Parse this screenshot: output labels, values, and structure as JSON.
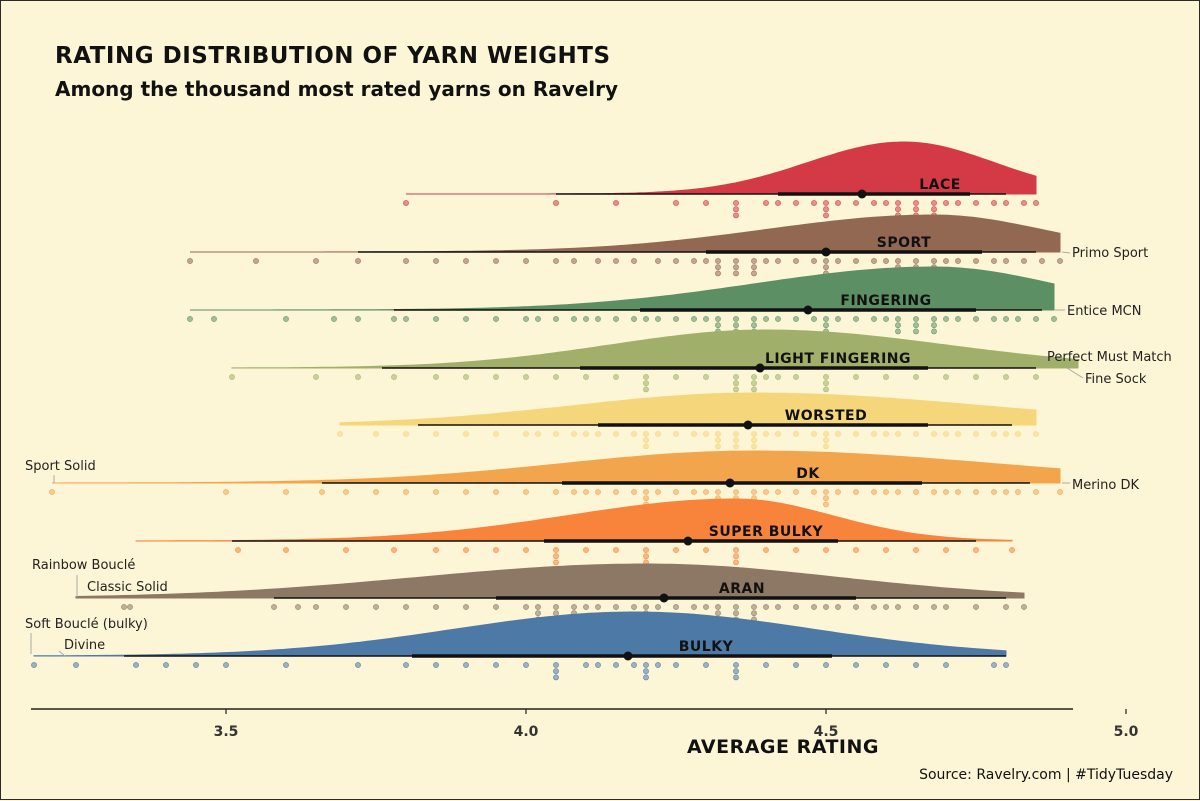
{
  "title": "RATING DISTRIBUTION OF YARN WEIGHTS",
  "subtitle": "Among the thousand most rated yarns on Ravelry",
  "caption": "Source: Ravelry.com | #TidyTuesday",
  "chart_data": {
    "type": "raincloud",
    "title": "RATING DISTRIBUTION OF YARN WEIGHTS",
    "subtitle": "Among the thousand most rated yarns on Ravelry",
    "xlabel": "AVERAGE RATING",
    "ylabel": "",
    "xlim": [
      3.17,
      4.92
    ],
    "xticks": [
      3.5,
      4.0,
      4.5,
      5.0
    ],
    "xtick_labels": [
      "3.5",
      "4.0",
      "4.5",
      "5.0"
    ],
    "grid": false,
    "legend": "none",
    "series": [
      {
        "name": "LACE",
        "color": "#d33a45",
        "min": 3.8,
        "max": 4.85,
        "q10": 4.05,
        "q90": 4.8,
        "q25": 4.42,
        "q75": 4.74,
        "median": 4.56,
        "peak": 4.63,
        "spread_low": 0.16,
        "spread_high": 0.15,
        "dots": [
          3.8,
          4.05,
          4.15,
          4.25,
          4.3,
          4.35,
          4.4,
          4.42,
          4.45,
          4.48,
          4.5,
          4.52,
          4.55,
          4.58,
          4.6,
          4.62,
          4.65,
          4.68,
          4.7,
          4.72,
          4.75,
          4.78,
          4.8,
          4.83,
          4.85
        ]
      },
      {
        "name": "SPORT",
        "color": "#936852",
        "min": 3.44,
        "max": 4.89,
        "q10": 3.72,
        "q90": 4.85,
        "q25": 4.3,
        "q75": 4.76,
        "median": 4.5,
        "peak": 4.68,
        "spread_low": 0.28,
        "spread_high": 0.18,
        "dots": [
          3.44,
          3.55,
          3.65,
          3.72,
          3.8,
          3.85,
          3.9,
          3.95,
          4.0,
          4.05,
          4.08,
          4.12,
          4.15,
          4.18,
          4.22,
          4.25,
          4.28,
          4.3,
          4.32,
          4.35,
          4.38,
          4.4,
          4.42,
          4.45,
          4.48,
          4.5,
          4.52,
          4.55,
          4.58,
          4.6,
          4.62,
          4.65,
          4.68,
          4.7,
          4.72,
          4.75,
          4.78,
          4.8,
          4.83,
          4.86,
          4.89
        ]
      },
      {
        "name": "FINGERING",
        "color": "#5c8f64",
        "min": 3.44,
        "max": 4.88,
        "q10": 3.78,
        "q90": 4.86,
        "q25": 4.19,
        "q75": 4.75,
        "median": 4.47,
        "peak": 4.68,
        "spread_low": 0.3,
        "spread_high": 0.2,
        "dots": [
          3.44,
          3.48,
          3.6,
          3.68,
          3.72,
          3.78,
          3.8,
          3.85,
          3.9,
          3.95,
          4.0,
          4.02,
          4.05,
          4.08,
          4.1,
          4.12,
          4.15,
          4.18,
          4.2,
          4.22,
          4.25,
          4.28,
          4.3,
          4.32,
          4.35,
          4.38,
          4.4,
          4.42,
          4.45,
          4.48,
          4.5,
          4.52,
          4.55,
          4.58,
          4.6,
          4.62,
          4.65,
          4.68,
          4.7,
          4.72,
          4.75,
          4.78,
          4.8,
          4.82,
          4.85,
          4.88
        ]
      },
      {
        "name": "LIGHT FINGERING",
        "color": "#a0b06a",
        "min": 3.51,
        "max": 4.92,
        "q10": 3.76,
        "q90": 4.85,
        "q25": 4.09,
        "q75": 4.67,
        "median": 4.39,
        "peak": 4.4,
        "spread_low": 0.26,
        "spread_high": 0.3,
        "dots": [
          3.51,
          3.65,
          3.72,
          3.78,
          3.85,
          3.9,
          3.95,
          4.0,
          4.05,
          4.1,
          4.15,
          4.2,
          4.25,
          4.3,
          4.35,
          4.38,
          4.4,
          4.42,
          4.45,
          4.5,
          4.55,
          4.6,
          4.65,
          4.7,
          4.75,
          4.8,
          4.85
        ]
      },
      {
        "name": "WORSTED",
        "color": "#f5d67a",
        "min": 3.69,
        "max": 4.85,
        "q10": 3.82,
        "q90": 4.81,
        "q25": 4.12,
        "q75": 4.67,
        "median": 4.37,
        "peak": 4.38,
        "spread_low": 0.3,
        "spread_high": 0.38,
        "dots": [
          3.69,
          3.75,
          3.8,
          3.85,
          3.9,
          3.95,
          4.0,
          4.02,
          4.05,
          4.08,
          4.1,
          4.12,
          4.15,
          4.18,
          4.2,
          4.22,
          4.25,
          4.28,
          4.3,
          4.32,
          4.35,
          4.38,
          4.4,
          4.42,
          4.45,
          4.48,
          4.5,
          4.52,
          4.55,
          4.58,
          4.6,
          4.62,
          4.65,
          4.68,
          4.7,
          4.72,
          4.75,
          4.78,
          4.8,
          4.82,
          4.85
        ]
      },
      {
        "name": "DK",
        "color": "#f3a54e",
        "min": 3.21,
        "max": 4.89,
        "q10": 3.66,
        "q90": 4.84,
        "q25": 4.06,
        "q75": 4.66,
        "median": 4.34,
        "peak": 4.38,
        "spread_low": 0.32,
        "spread_high": 0.4,
        "dots": [
          3.21,
          3.5,
          3.6,
          3.66,
          3.7,
          3.75,
          3.8,
          3.85,
          3.9,
          3.95,
          4.0,
          4.05,
          4.08,
          4.1,
          4.12,
          4.15,
          4.18,
          4.2,
          4.22,
          4.25,
          4.28,
          4.3,
          4.32,
          4.35,
          4.38,
          4.4,
          4.42,
          4.45,
          4.48,
          4.5,
          4.52,
          4.55,
          4.58,
          4.6,
          4.62,
          4.65,
          4.68,
          4.7,
          4.72,
          4.75,
          4.78,
          4.8,
          4.82,
          4.85,
          4.89
        ]
      },
      {
        "name": "SUPER BULKY",
        "color": "#f7843a",
        "min": 3.35,
        "max": 4.81,
        "q10": 3.51,
        "q90": 4.75,
        "q25": 4.03,
        "q75": 4.52,
        "median": 4.27,
        "peak": 4.35,
        "spread_low": 0.28,
        "spread_high": 0.16,
        "dots": [
          3.52,
          3.6,
          3.7,
          3.78,
          3.85,
          3.9,
          3.95,
          4.0,
          4.05,
          4.1,
          4.15,
          4.2,
          4.25,
          4.3,
          4.35,
          4.4,
          4.45,
          4.5,
          4.55,
          4.6,
          4.65,
          4.7,
          4.75,
          4.81
        ]
      },
      {
        "name": "ARAN",
        "color": "#8d7866",
        "min": 3.25,
        "max": 4.83,
        "q10": 3.58,
        "q90": 4.8,
        "q25": 3.95,
        "q75": 4.55,
        "median": 4.23,
        "peak": 4.2,
        "spread_low": 0.38,
        "spread_high": 0.32,
        "dots": [
          3.33,
          3.34,
          3.58,
          3.62,
          3.65,
          3.7,
          3.75,
          3.8,
          3.85,
          3.9,
          3.95,
          4.0,
          4.02,
          4.05,
          4.08,
          4.1,
          4.12,
          4.15,
          4.18,
          4.2,
          4.22,
          4.25,
          4.28,
          4.3,
          4.32,
          4.35,
          4.38,
          4.4,
          4.42,
          4.45,
          4.48,
          4.5,
          4.52,
          4.55,
          4.58,
          4.6,
          4.62,
          4.65,
          4.68,
          4.7,
          4.75,
          4.8,
          4.83
        ]
      },
      {
        "name": "BULKY",
        "color": "#4d79a6",
        "min": 3.18,
        "max": 4.8,
        "q10": 3.33,
        "q90": 4.8,
        "q25": 3.81,
        "q75": 4.51,
        "median": 4.17,
        "peak": 4.18,
        "spread_low": 0.3,
        "spread_high": 0.3,
        "dots": [
          3.18,
          3.25,
          3.35,
          3.4,
          3.45,
          3.5,
          3.6,
          3.72,
          3.8,
          3.85,
          3.9,
          3.95,
          4.0,
          4.05,
          4.1,
          4.12,
          4.15,
          4.18,
          4.2,
          4.22,
          4.25,
          4.3,
          4.35,
          4.4,
          4.45,
          4.5,
          4.55,
          4.6,
          4.65,
          4.7,
          4.78,
          4.8
        ]
      }
    ],
    "annotations": [
      {
        "text": "Primo Sport",
        "series": "SPORT",
        "x": 4.89,
        "side": "right"
      },
      {
        "text": "Entice MCN",
        "series": "FINGERING",
        "x": 4.88,
        "side": "right"
      },
      {
        "text": "Perfect Must Match",
        "series": "LIGHT FINGERING",
        "x": 4.92,
        "side": "right"
      },
      {
        "text": "Fine Sock",
        "series": "LIGHT FINGERING",
        "x": 4.92,
        "side": "right"
      },
      {
        "text": "Merino DK",
        "series": "DK",
        "x": 4.89,
        "side": "right"
      },
      {
        "text": "Sport Solid",
        "series": "DK",
        "x": 3.21,
        "side": "left"
      },
      {
        "text": "Rainbow Bouclé",
        "series": "ARAN",
        "x": 3.25,
        "side": "left"
      },
      {
        "text": "Classic Solid",
        "series": "ARAN",
        "x": 3.25,
        "side": "left"
      },
      {
        "text": "Soft Bouclé (bulky)",
        "series": "BULKY",
        "x": 3.18,
        "side": "left"
      },
      {
        "text": "Divine",
        "series": "BULKY",
        "x": 3.18,
        "side": "left"
      }
    ]
  }
}
